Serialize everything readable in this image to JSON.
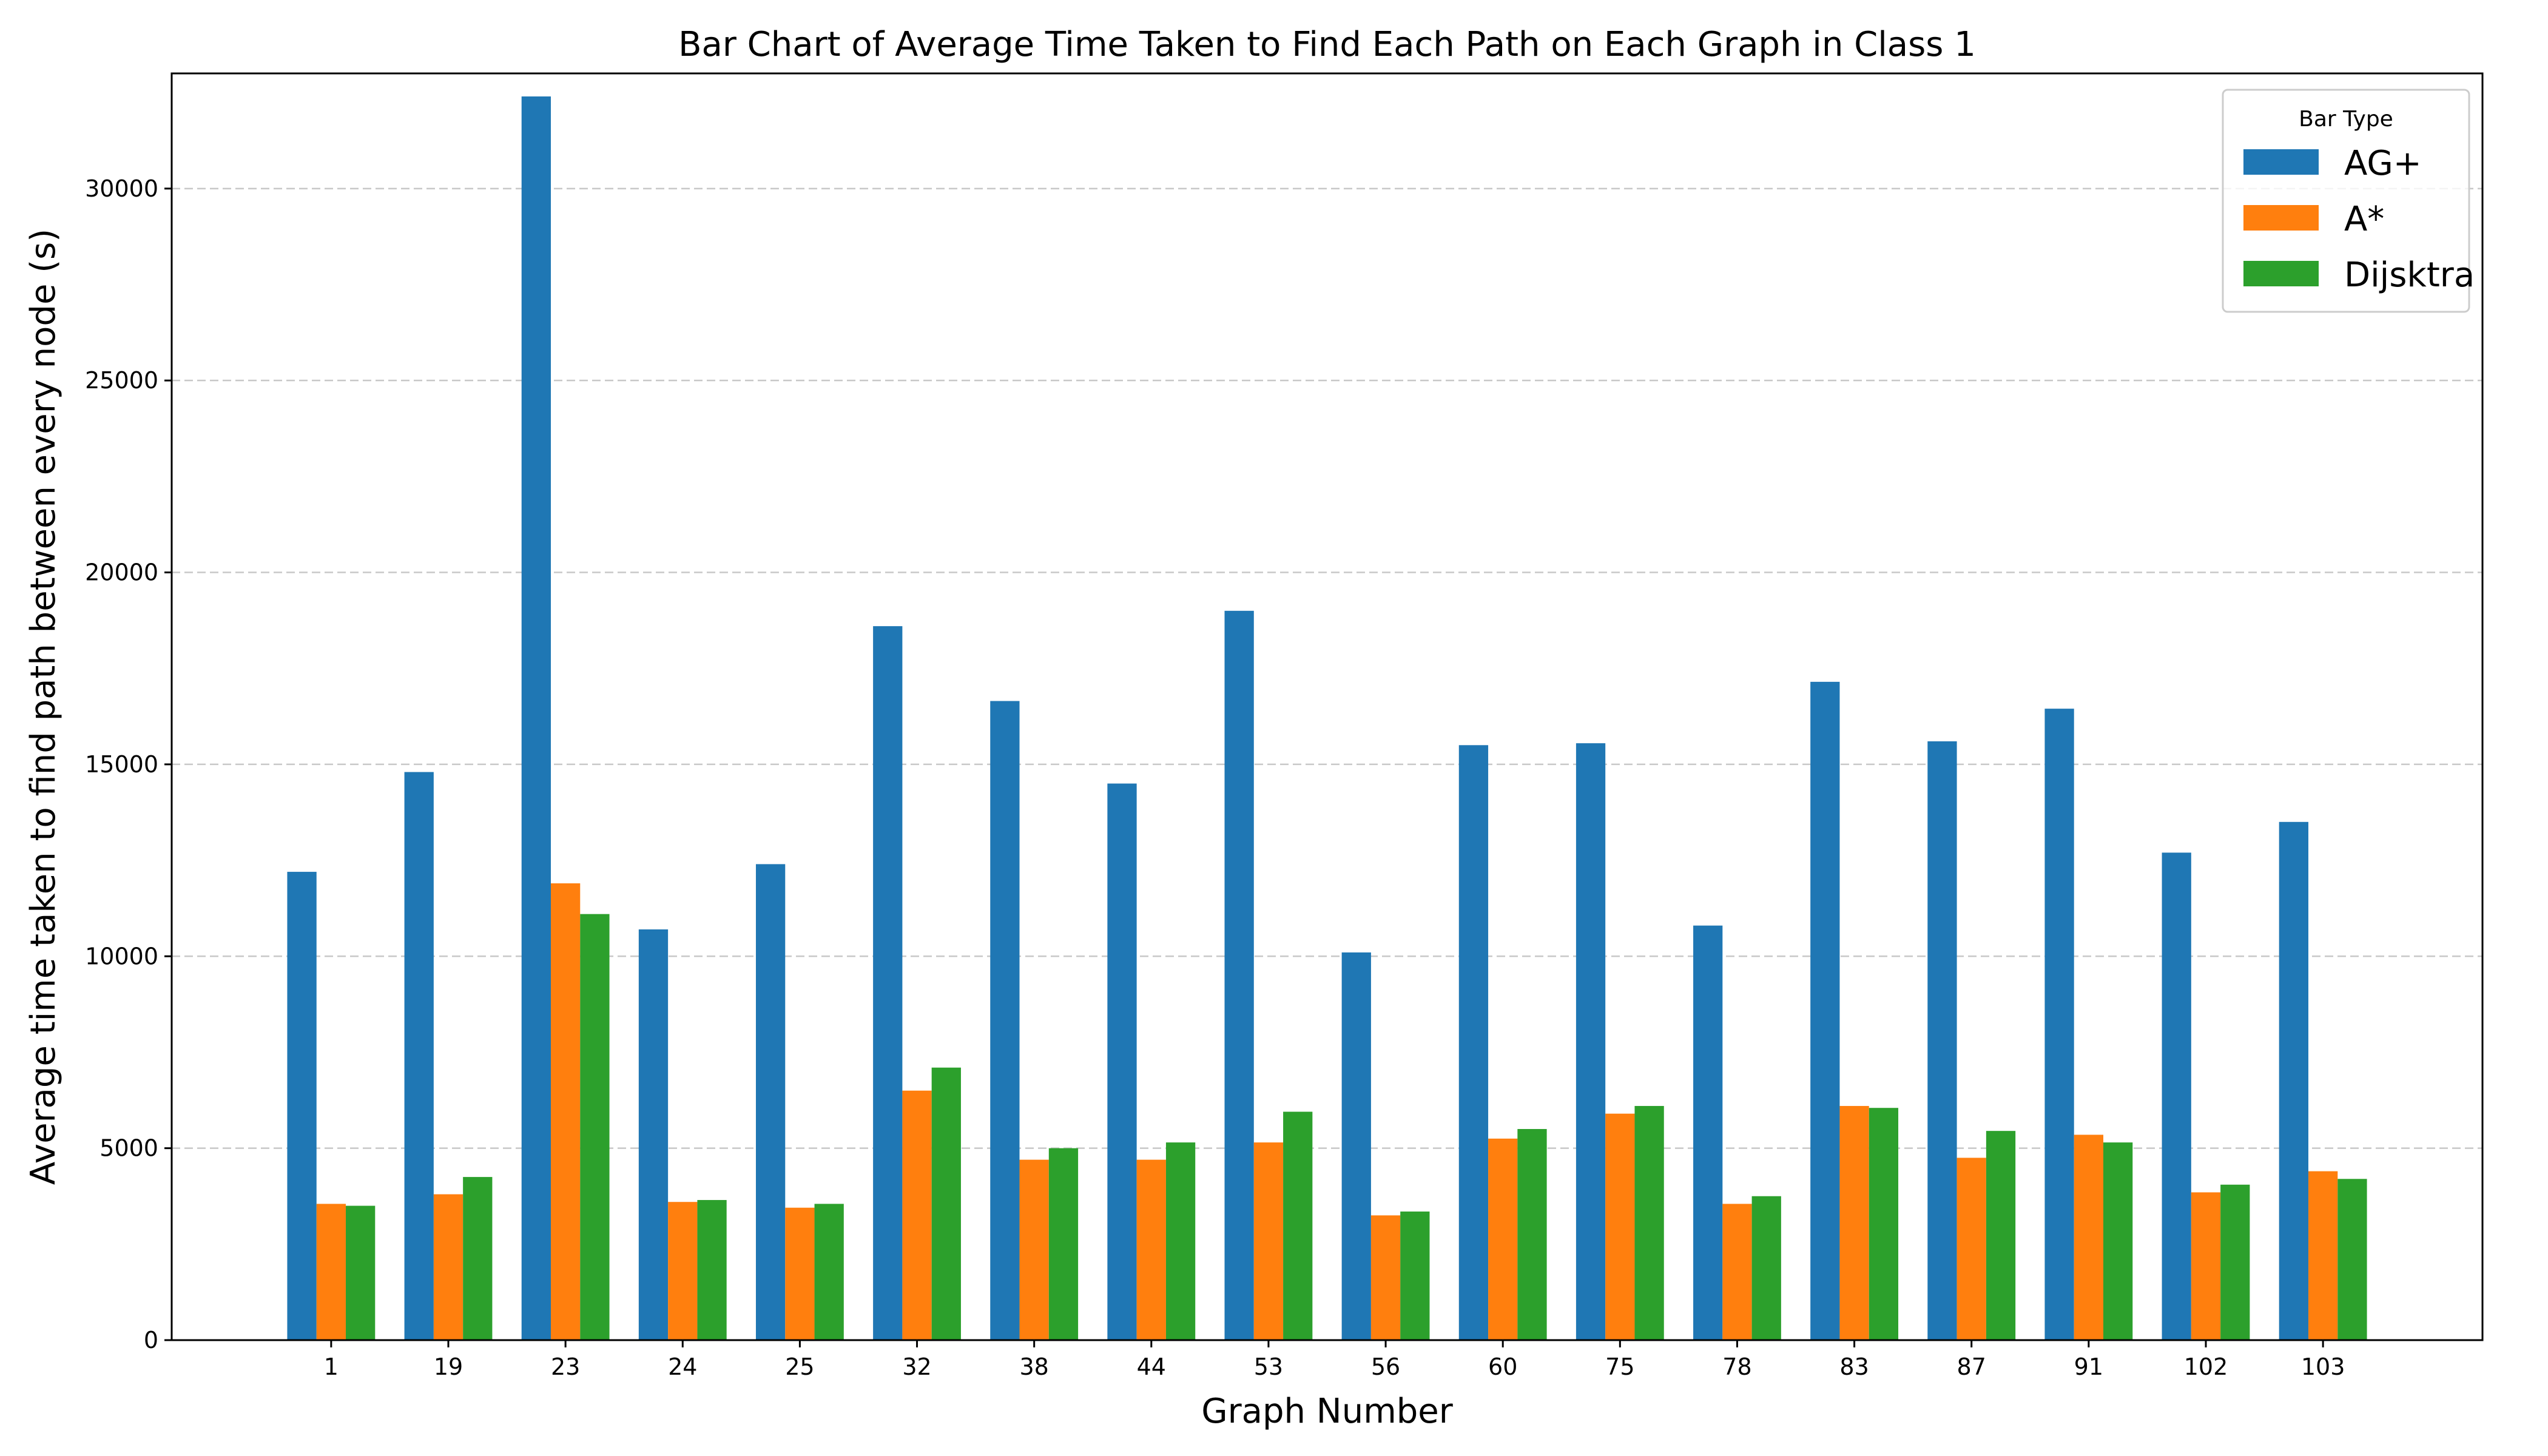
{
  "chart_data": {
    "type": "bar",
    "title": "Bar Chart of Average Time Taken to Find Each Path on Each Graph in Class 1",
    "xlabel": "Graph Number",
    "ylabel": "Average time taken to find path between every node (s)",
    "categories": [
      "1",
      "19",
      "23",
      "24",
      "25",
      "32",
      "38",
      "44",
      "53",
      "56",
      "60",
      "75",
      "78",
      "83",
      "87",
      "91",
      "102",
      "103"
    ],
    "series": [
      {
        "name": "AG+",
        "color": "#1f77b4",
        "values": [
          12200,
          14800,
          32400,
          10700,
          12400,
          18600,
          16650,
          14500,
          19000,
          10100,
          15500,
          15550,
          10800,
          17150,
          15600,
          16450,
          12700,
          13500
        ]
      },
      {
        "name": "A*",
        "color": "#ff7f0e",
        "values": [
          3550,
          3800,
          11900,
          3600,
          3450,
          6500,
          4700,
          4700,
          5150,
          3250,
          5250,
          5900,
          3550,
          6100,
          4750,
          5350,
          3850,
          4400
        ]
      },
      {
        "name": "Dijsktra",
        "color": "#2ca02c",
        "values": [
          3500,
          4250,
          11100,
          3650,
          3550,
          7100,
          5000,
          5150,
          5950,
          3350,
          5500,
          6100,
          3750,
          6050,
          5450,
          5150,
          4050,
          4200
        ]
      }
    ],
    "ylim": [
      0,
      33000
    ],
    "yticks": [
      0,
      5000,
      10000,
      15000,
      20000,
      25000,
      30000
    ],
    "grid": "y-dashed",
    "legend": {
      "title": "Bar Type",
      "placement": "top-right"
    }
  }
}
